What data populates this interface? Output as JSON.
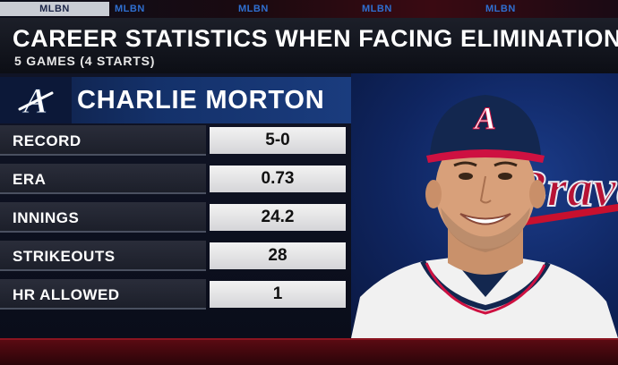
{
  "ticker": {
    "tabs": [
      "MLBN",
      "MLBN",
      "MLBN",
      "MLBN",
      "MLBN"
    ],
    "active_index": 0
  },
  "header": {
    "title": "CAREER STATISTICS WHEN FACING ELIMINATION",
    "subtitle": "5 GAMES (4 STARTS)"
  },
  "player": {
    "name": "CHARLIE MORTON",
    "team_logo_letter": "A",
    "cap_logo_letter": "A",
    "jersey_script": "Braves"
  },
  "stats": [
    {
      "label": "RECORD",
      "value": "5-0"
    },
    {
      "label": "ERA",
      "value": "0.73"
    },
    {
      "label": "INNINGS",
      "value": "24.2"
    },
    {
      "label": "STRIKEOUTS",
      "value": "28"
    },
    {
      "label": "HR ALLOWED",
      "value": "1"
    }
  ],
  "colors": {
    "navy": "#13274f",
    "red": "#ce1141",
    "value_text": "#111111"
  }
}
